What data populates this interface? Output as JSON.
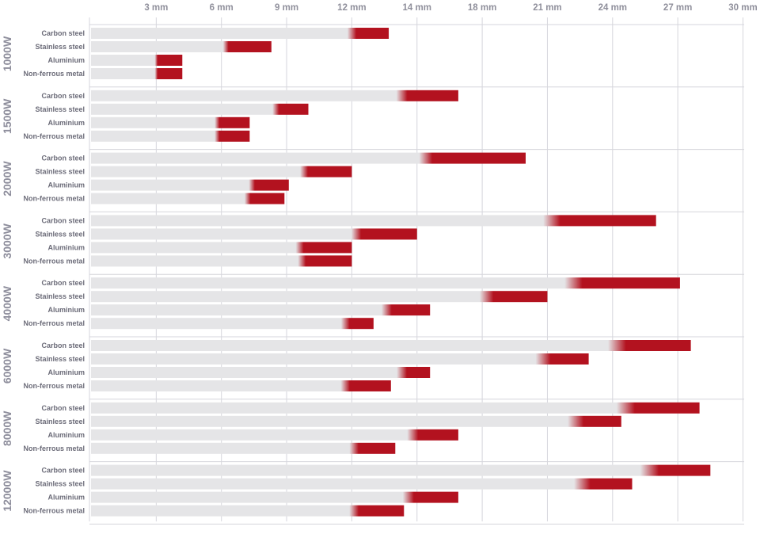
{
  "chart_data": {
    "type": "bar",
    "orientation": "horizontal",
    "x_ticks": [
      "3 mm",
      "6 mm",
      "9 mm",
      "12 mm",
      "14 mm",
      "18 mm",
      "21 mm",
      "24 mm",
      "27 mm",
      "30 mm"
    ],
    "categories": [
      "Carbon steel",
      "Stainless steel",
      "Aluminium",
      "Non-ferrous metal"
    ],
    "groups": [
      {
        "name": "1000W",
        "min": [
          12,
          6.2,
          3.0,
          3.0
        ],
        "max": [
          13.7,
          8.3,
          4.2,
          4.2
        ]
      },
      {
        "name": "1500W",
        "min": [
          14.3,
          8.5,
          5.8,
          5.8
        ],
        "max": [
          16.9,
          10.0,
          7.3,
          7.3
        ]
      },
      {
        "name": "2000W",
        "min": [
          15.4,
          9.8,
          7.4,
          7.2
        ],
        "max": [
          20.0,
          12.0,
          9.1,
          8.9
        ]
      },
      {
        "name": "3000W",
        "min": [
          21.2,
          12.2,
          9.6,
          9.7
        ],
        "max": [
          26.0,
          15.0,
          12.0,
          12.0
        ]
      },
      {
        "name": "4000W",
        "min": [
          22.2,
          18.2,
          13.6,
          11.7
        ],
        "max": [
          27.1,
          21.0,
          15.6,
          13.0
        ]
      },
      {
        "name": "6000W",
        "min": [
          24.2,
          20.8,
          14.3,
          11.7
        ],
        "max": [
          27.6,
          22.9,
          15.6,
          13.8
        ]
      },
      {
        "name": "8000W",
        "min": [
          24.6,
          22.3,
          14.8,
          12.1
        ],
        "max": [
          28.0,
          24.4,
          16.9,
          14.0
        ]
      },
      {
        "name": "12000W",
        "min": [
          25.7,
          22.6,
          14.6,
          12.1
        ],
        "max": [
          28.5,
          24.9,
          16.9,
          14.4
        ]
      }
    ],
    "colors": {
      "track": "#e5e5e7",
      "fill": "#b3121f",
      "grid": "#d6d6dc",
      "label": "#6b6b78",
      "tick": "#8f8f9b"
    },
    "grid": true
  }
}
